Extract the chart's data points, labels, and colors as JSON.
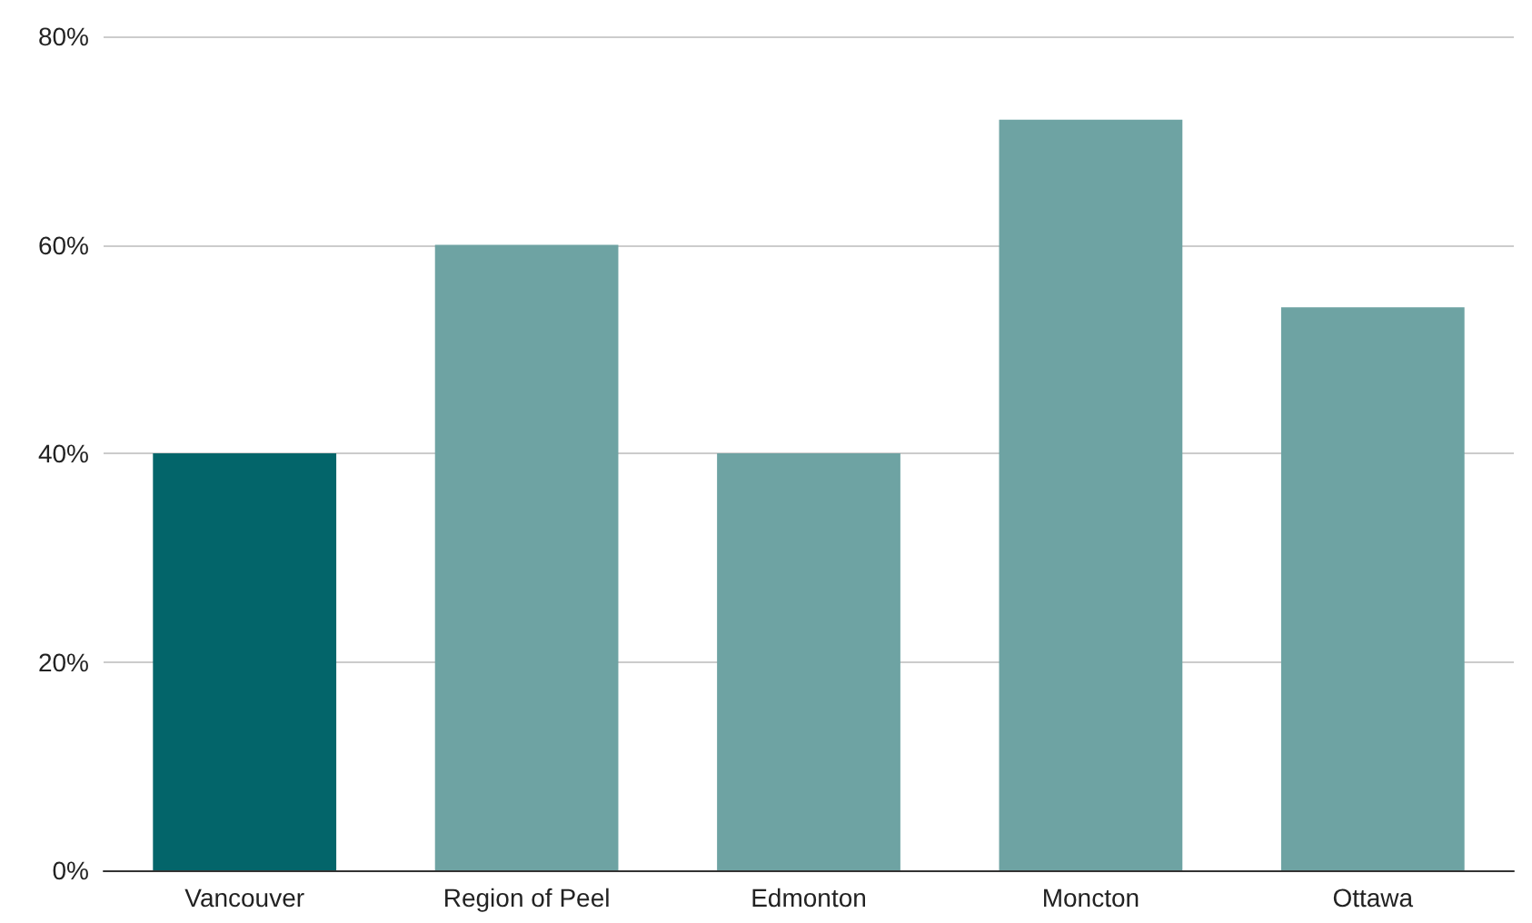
{
  "chart_data": {
    "type": "bar",
    "categories": [
      "Vancouver",
      "Region of Peel",
      "Edmonton",
      "Moncton",
      "Ottawa"
    ],
    "values": [
      40,
      60,
      40,
      72,
      54
    ],
    "colors": [
      "#03656a",
      "#6ea3a3",
      "#6ea3a3",
      "#6ea3a3",
      "#6ea3a3"
    ],
    "ylim": [
      0,
      80
    ],
    "yticks": [
      {
        "value": 0,
        "label": "0%"
      },
      {
        "value": 20,
        "label": "20%"
      },
      {
        "value": 40,
        "label": "40%"
      },
      {
        "value": 60,
        "label": "60%"
      },
      {
        "value": 80,
        "label": "80%"
      }
    ],
    "grid": "y"
  }
}
